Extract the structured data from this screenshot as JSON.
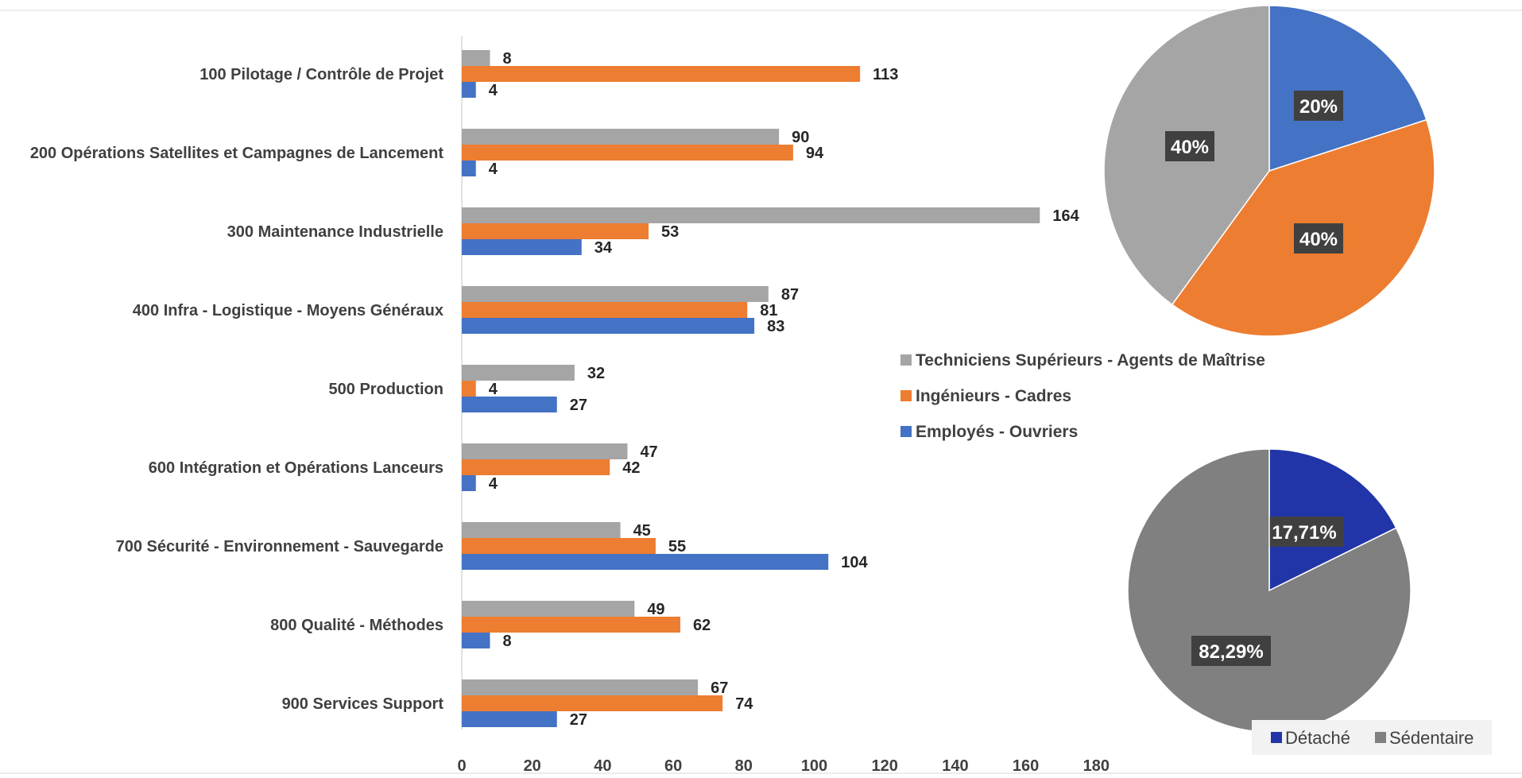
{
  "chart_data": [
    {
      "type": "bar",
      "orientation": "horizontal",
      "categories": [
        "100 Pilotage / Contrôle de Projet",
        "200 Opérations Satellites et Campagnes de Lancement",
        "300 Maintenance Industrielle",
        "400 Infra - Logistique - Moyens Généraux",
        "500 Production",
        "600 Intégration et Opérations Lanceurs",
        "700 Sécurité - Environnement - Sauvegarde",
        "800 Qualité - Méthodes",
        "900 Services Support"
      ],
      "series": [
        {
          "name": "Techniciens Supérieurs - Agents de Maîtrise",
          "color": "#a5a5a5",
          "values": [
            8,
            90,
            164,
            87,
            32,
            47,
            45,
            49,
            67
          ]
        },
        {
          "name": "Ingénieurs - Cadres",
          "color": "#ed7d31",
          "values": [
            113,
            94,
            53,
            81,
            4,
            42,
            55,
            62,
            74
          ]
        },
        {
          "name": "Employés - Ouvriers",
          "color": "#4472c4",
          "values": [
            4,
            4,
            34,
            83,
            27,
            4,
            104,
            8,
            27
          ]
        }
      ],
      "xlim": [
        0,
        180
      ],
      "xticks": [
        "0",
        "20",
        "40",
        "60",
        "80",
        "100",
        "120",
        "140",
        "160",
        "180"
      ],
      "legend": "right"
    },
    {
      "type": "pie",
      "labels": [
        "Employés - Ouvriers",
        "Ingénieurs - Cadres",
        "Techniciens Supérieurs - Agents de Maîtrise"
      ],
      "values": [
        20,
        40,
        40
      ],
      "display": [
        "20%",
        "40%",
        "40%"
      ],
      "colors": [
        "#4472c4",
        "#ed7d31",
        "#a5a5a5"
      ]
    },
    {
      "type": "pie",
      "labels": [
        "Détaché",
        "Sédentaire"
      ],
      "values": [
        17.71,
        82.29
      ],
      "display": [
        "17,71%",
        "82,29%"
      ],
      "colors": [
        "#2135a8",
        "#808080"
      ],
      "legend": "bottom-right"
    }
  ]
}
